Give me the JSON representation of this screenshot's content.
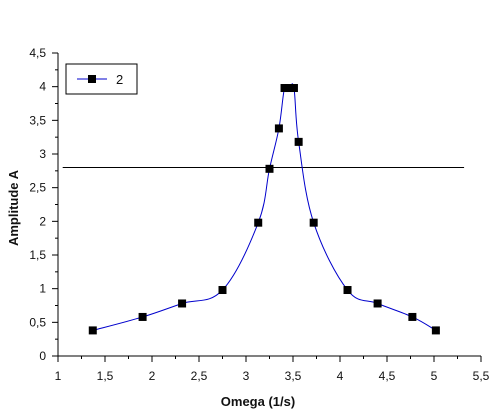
{
  "chart_data": {
    "type": "line",
    "title": "",
    "xlabel": "Omega (1/s)",
    "ylabel": "Amplitude A",
    "xlim": [
      1,
      5.5
    ],
    "ylim": [
      0,
      4.5
    ],
    "x_ticks": [
      "1",
      "1,5",
      "2",
      "2,5",
      "3",
      "3,5",
      "4",
      "4,5",
      "5",
      "5,5"
    ],
    "y_ticks": [
      "0",
      "0,5",
      "1",
      "1,5",
      "2",
      "2,5",
      "3",
      "3,5",
      "4",
      "4,5"
    ],
    "grid": false,
    "legend_position": "top-left",
    "reference_line": {
      "y": 2.8,
      "x_range": [
        1.05,
        5.32
      ],
      "color": "#000000"
    },
    "series": [
      {
        "name": "2",
        "color": "#0000cc",
        "marker_color": "#000000",
        "points": [
          [
            1.37,
            0.38
          ],
          [
            1.9,
            0.58
          ],
          [
            2.32,
            0.78
          ],
          [
            2.75,
            0.98
          ],
          [
            3.13,
            1.98
          ],
          [
            3.25,
            2.78
          ],
          [
            3.35,
            3.38
          ],
          [
            3.41,
            3.98
          ],
          [
            3.46,
            3.98
          ],
          [
            3.51,
            3.98
          ],
          [
            3.56,
            3.18
          ],
          [
            3.72,
            1.98
          ],
          [
            4.08,
            0.98
          ],
          [
            4.4,
            0.78
          ],
          [
            4.77,
            0.58
          ],
          [
            5.02,
            0.38
          ]
        ]
      }
    ]
  }
}
